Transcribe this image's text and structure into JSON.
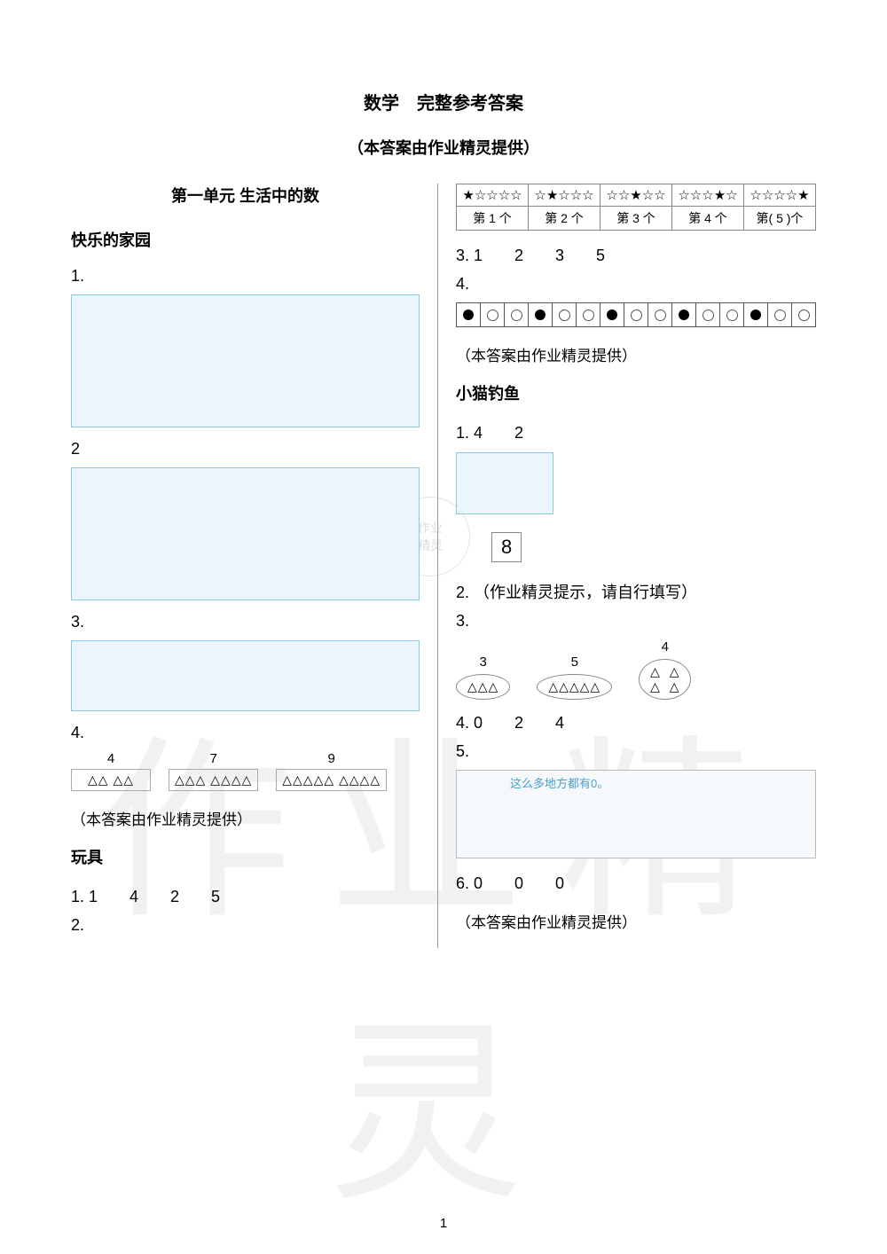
{
  "title_main": "数学　完整参考答案",
  "title_sub": "（本答案由作业精灵提供）",
  "unit_heading": "第一单元  生活中的数",
  "left": {
    "sec1_heading": "快乐的家园",
    "q1": "1.",
    "q2": "2",
    "q3": "3.",
    "q4": "4.",
    "tri_heads": [
      "4",
      "7",
      "9"
    ],
    "tri_rows": [
      "△△ △△",
      "△△△ △△△△",
      "△△△△△ △△△△"
    ],
    "credit": "（本答案由作业精灵提供）",
    "sec2_heading": "玩具",
    "toys_q1": "1.  1　　4　　2　　5",
    "toys_q2": "2.",
    "image_border_color": "#88c8e8",
    "image_bg_color": "#eaf6fc"
  },
  "right": {
    "star_headers": [
      "★☆☆☆☆",
      "☆★☆☆☆",
      "☆☆★☆☆",
      "☆☆☆★☆",
      "☆☆☆☆★"
    ],
    "star_labels": [
      "第 1 个",
      "第 2 个",
      "第 3 个",
      "第 4 个",
      "第( 5 )个"
    ],
    "q3_line": "3.  1　　2　　3　　5",
    "q4": "4.",
    "circle_pattern": [
      "f",
      "o",
      "o",
      "f",
      "o",
      "o",
      "f",
      "o",
      "o",
      "f",
      "o",
      "o",
      "f",
      "o",
      "o"
    ],
    "credit1": "（本答案由作业精灵提供）",
    "sec_heading": "小猫钓鱼",
    "fish_q1": "1.  4　　2",
    "num_box": "8",
    "fish_q2": "2. （作业精灵提示，请自行填写）",
    "fish_q3": "3.",
    "tri_ovals_heads": [
      "3",
      "5",
      "4"
    ],
    "tri_ovals_vals": [
      "△△△",
      "△△△△△",
      "△  △\n△  △"
    ],
    "fish_q4": "4.  0　　2　　4",
    "fish_q5": "5.",
    "q5_caption": "这么多地方都有0。",
    "fish_q6": "6. 0　　0　　0",
    "credit2": "（本答案由作业精灵提供）"
  },
  "watermark_text": "作业精灵",
  "page_number": "1",
  "colors": {
    "text": "#000000",
    "divider": "#999999",
    "box_border": "#888888",
    "accent_blue": "#6fbfe6",
    "watermark": "rgba(120,120,120,0.10)"
  }
}
